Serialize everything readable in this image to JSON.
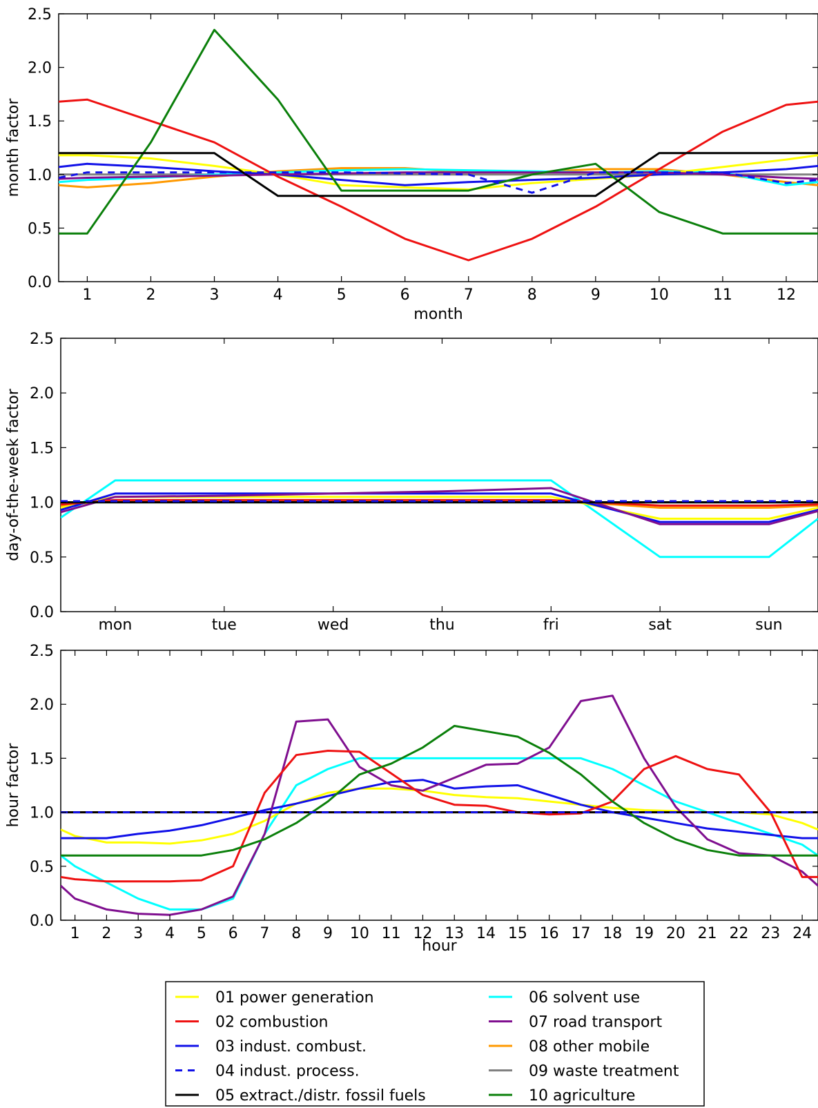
{
  "legend": {
    "position": "bottom-center",
    "entries": [
      {
        "label": "01 power generation",
        "color": "#ffff00",
        "dash": false
      },
      {
        "label": "02 combustion",
        "color": "#ee1111",
        "dash": false
      },
      {
        "label": "03 indust. combust.",
        "color": "#1010e8",
        "dash": false
      },
      {
        "label": "04 indust. process.",
        "color": "#1010e8",
        "dash": true
      },
      {
        "label": "05 extract./distr. fossil fuels",
        "color": "#000000",
        "dash": false
      },
      {
        "label": "06 solvent use",
        "color": "#00ffff",
        "dash": false
      },
      {
        "label": "07 road transport",
        "color": "#7f0f8f",
        "dash": false
      },
      {
        "label": "08 other mobile",
        "color": "#ff9900",
        "dash": false
      },
      {
        "label": "09 waste treatment",
        "color": "#808080",
        "dash": false
      },
      {
        "label": "10 agriculture",
        "color": "#0a7f0a",
        "dash": false
      }
    ]
  },
  "chart_data": [
    {
      "type": "line",
      "xlabel": "month",
      "ylabel": "month factor",
      "ylim": [
        0,
        2.5
      ],
      "xlim": [
        0.55,
        12.5
      ],
      "yticks": [
        "0.0",
        "0.5",
        "1.0",
        "1.5",
        "2.0",
        "2.5"
      ],
      "xticks": [
        "1",
        "2",
        "3",
        "4",
        "5",
        "6",
        "7",
        "8",
        "9",
        "10",
        "11",
        "12"
      ],
      "x": [
        0.55,
        1,
        2,
        3,
        4,
        5,
        6,
        7,
        8,
        9,
        10,
        11,
        12,
        12.5
      ],
      "grid": false,
      "series": [
        {
          "name": "01 power generation",
          "values": [
            1.18,
            1.18,
            1.15,
            1.08,
            1.0,
            0.9,
            0.88,
            0.86,
            0.92,
            0.96,
            1.0,
            1.07,
            1.14,
            1.18
          ]
        },
        {
          "name": "02 combustion",
          "values": [
            1.68,
            1.7,
            1.5,
            1.3,
            0.98,
            0.7,
            0.4,
            0.2,
            0.4,
            0.7,
            1.05,
            1.4,
            1.65,
            1.68
          ]
        },
        {
          "name": "03 indust. combust.",
          "values": [
            1.07,
            1.1,
            1.07,
            1.03,
            1.0,
            0.95,
            0.9,
            0.93,
            0.95,
            0.97,
            1.0,
            1.02,
            1.05,
            1.08
          ]
        },
        {
          "name": "04 indust. process.",
          "values": [
            0.97,
            1.02,
            1.02,
            1.02,
            1.02,
            1.02,
            1.01,
            1.0,
            0.83,
            1.02,
            1.02,
            1.02,
            0.92,
            0.95
          ]
        },
        {
          "name": "05 extract./distr. fossil fuels",
          "values": [
            1.2,
            1.2,
            1.2,
            1.2,
            0.8,
            0.8,
            0.8,
            0.8,
            0.8,
            0.8,
            1.2,
            1.2,
            1.2,
            1.2
          ]
        },
        {
          "name": "06 solvent use",
          "values": [
            0.93,
            0.95,
            0.97,
            1.0,
            1.02,
            1.04,
            1.05,
            1.04,
            1.03,
            1.02,
            1.03,
            1.02,
            0.9,
            0.93
          ]
        },
        {
          "name": "07 road transport",
          "values": [
            0.96,
            0.97,
            0.98,
            0.99,
            1.0,
            1.01,
            1.02,
            1.02,
            1.02,
            1.02,
            1.02,
            1.0,
            0.97,
            0.96
          ]
        },
        {
          "name": "08 other mobile",
          "values": [
            0.9,
            0.88,
            0.92,
            0.98,
            1.03,
            1.06,
            1.06,
            1.02,
            1.02,
            1.05,
            1.05,
            1.0,
            0.93,
            0.9
          ]
        },
        {
          "name": "09 waste treatment",
          "values": [
            1.0,
            1.0,
            1.0,
            1.0,
            1.0,
            1.0,
            1.0,
            1.0,
            1.0,
            1.0,
            1.0,
            1.0,
            1.0,
            1.0
          ]
        },
        {
          "name": "10 agriculture",
          "values": [
            0.45,
            0.45,
            1.3,
            2.35,
            1.7,
            0.85,
            0.85,
            0.85,
            1.0,
            1.1,
            0.65,
            0.45,
            0.45,
            0.45
          ]
        }
      ]
    },
    {
      "type": "line",
      "xlabel": "",
      "ylabel": "day-of-the-week factor",
      "ylim": [
        0,
        2.5
      ],
      "xlim": [
        0.5,
        7.45
      ],
      "yticks": [
        "0.0",
        "0.5",
        "1.0",
        "1.5",
        "2.0",
        "2.5"
      ],
      "xticks": [
        "mon",
        "tue",
        "wed",
        "thu",
        "fri",
        "sat",
        "sun"
      ],
      "x": [
        0.5,
        1,
        2,
        3,
        4,
        5,
        6,
        7,
        7.45
      ],
      "grid": false,
      "series": [
        {
          "name": "01 power generation",
          "values": [
            0.95,
            1.05,
            1.05,
            1.05,
            1.05,
            1.05,
            0.85,
            0.85,
            0.95
          ]
        },
        {
          "name": "02 combustion",
          "values": [
            0.98,
            1.02,
            1.02,
            1.02,
            1.02,
            1.02,
            0.97,
            0.97,
            0.98
          ]
        },
        {
          "name": "03 indust. combust.",
          "values": [
            0.93,
            1.08,
            1.08,
            1.08,
            1.08,
            1.08,
            0.82,
            0.82,
            0.93
          ]
        },
        {
          "name": "04 indust. process.",
          "values": [
            1.01,
            1.01,
            1.01,
            1.01,
            1.01,
            1.01,
            1.01,
            1.01,
            1.01
          ]
        },
        {
          "name": "05 extract./distr. fossil fuels",
          "values": [
            1.0,
            1.0,
            1.0,
            1.0,
            1.0,
            1.0,
            1.0,
            1.0,
            1.0
          ]
        },
        {
          "name": "06 solvent use",
          "values": [
            0.86,
            1.2,
            1.2,
            1.2,
            1.2,
            1.2,
            0.5,
            0.5,
            0.85
          ]
        },
        {
          "name": "07 road transport",
          "values": [
            0.91,
            1.05,
            1.06,
            1.08,
            1.1,
            1.13,
            0.8,
            0.8,
            0.92
          ]
        },
        {
          "name": "08 other mobile",
          "values": [
            0.97,
            1.02,
            1.02,
            1.02,
            1.02,
            1.02,
            0.95,
            0.95,
            0.97
          ]
        },
        {
          "name": "09 waste treatment",
          "values": [
            1.0,
            1.0,
            1.0,
            1.0,
            1.0,
            1.0,
            1.0,
            1.0,
            1.0
          ]
        },
        {
          "name": "10 agriculture",
          "values": [
            1.0,
            1.0,
            1.0,
            1.0,
            1.0,
            1.0,
            1.0,
            1.0,
            1.0
          ]
        }
      ]
    },
    {
      "type": "line",
      "xlabel": "hour",
      "ylabel": "hour factor",
      "ylim": [
        0,
        2.5
      ],
      "xlim": [
        0.55,
        24.5
      ],
      "yticks": [
        "0.0",
        "0.5",
        "1.0",
        "1.5",
        "2.0",
        "2.5"
      ],
      "xticks": [
        "1",
        "2",
        "3",
        "4",
        "5",
        "6",
        "7",
        "8",
        "9",
        "10",
        "11",
        "12",
        "13",
        "14",
        "15",
        "16",
        "17",
        "18",
        "19",
        "20",
        "21",
        "22",
        "23",
        "24"
      ],
      "x": [
        0.55,
        1,
        2,
        3,
        4,
        5,
        6,
        7,
        8,
        9,
        10,
        11,
        12,
        13,
        14,
        15,
        16,
        17,
        18,
        19,
        20,
        21,
        22,
        23,
        24,
        24.5
      ],
      "grid": false,
      "series": [
        {
          "name": "01 power generation",
          "values": [
            0.84,
            0.78,
            0.72,
            0.72,
            0.71,
            0.74,
            0.8,
            0.92,
            1.08,
            1.18,
            1.22,
            1.22,
            1.2,
            1.16,
            1.14,
            1.13,
            1.1,
            1.07,
            1.04,
            1.02,
            1.01,
            1.0,
            1.0,
            0.98,
            0.9,
            0.84
          ]
        },
        {
          "name": "02 combustion",
          "values": [
            0.4,
            0.38,
            0.36,
            0.36,
            0.36,
            0.37,
            0.5,
            1.18,
            1.53,
            1.57,
            1.56,
            1.36,
            1.16,
            1.07,
            1.06,
            1.0,
            0.98,
            0.99,
            1.1,
            1.4,
            1.52,
            1.4,
            1.35,
            1.0,
            0.4,
            0.4
          ]
        },
        {
          "name": "03 indust. combust.",
          "values": [
            0.76,
            0.76,
            0.76,
            0.8,
            0.83,
            0.88,
            0.95,
            1.02,
            1.08,
            1.15,
            1.22,
            1.28,
            1.3,
            1.22,
            1.24,
            1.25,
            1.16,
            1.07,
            1.0,
            0.95,
            0.9,
            0.85,
            0.82,
            0.79,
            0.76,
            0.76
          ]
        },
        {
          "name": "04 indust. process.",
          "values": [
            1.0,
            1.0,
            1.0,
            1.0,
            1.0,
            1.0,
            1.0,
            1.0,
            1.0,
            1.0,
            1.0,
            1.0,
            1.0,
            1.0,
            1.0,
            1.0,
            1.0,
            1.0,
            1.0,
            1.0,
            1.0,
            1.0,
            1.0,
            1.0,
            1.0,
            1.0
          ]
        },
        {
          "name": "05 extract./distr. fossil fuels",
          "values": [
            1.0,
            1.0,
            1.0,
            1.0,
            1.0,
            1.0,
            1.0,
            1.0,
            1.0,
            1.0,
            1.0,
            1.0,
            1.0,
            1.0,
            1.0,
            1.0,
            1.0,
            1.0,
            1.0,
            1.0,
            1.0,
            1.0,
            1.0,
            1.0,
            1.0,
            1.0
          ]
        },
        {
          "name": "06 solvent use",
          "values": [
            0.6,
            0.5,
            0.35,
            0.2,
            0.1,
            0.1,
            0.2,
            0.8,
            1.25,
            1.4,
            1.5,
            1.5,
            1.5,
            1.5,
            1.5,
            1.5,
            1.5,
            1.5,
            1.4,
            1.25,
            1.1,
            1.0,
            0.9,
            0.8,
            0.7,
            0.6
          ]
        },
        {
          "name": "07 road transport",
          "values": [
            0.32,
            0.2,
            0.1,
            0.06,
            0.05,
            0.1,
            0.22,
            0.8,
            1.84,
            1.86,
            1.42,
            1.25,
            1.2,
            1.32,
            1.44,
            1.45,
            1.6,
            2.03,
            2.08,
            1.5,
            1.05,
            0.75,
            0.62,
            0.6,
            0.45,
            0.32
          ]
        },
        {
          "name": "08 other mobile",
          "values": [
            1.0,
            1.0,
            1.0,
            1.0,
            1.0,
            1.0,
            1.0,
            1.0,
            1.0,
            1.0,
            1.0,
            1.0,
            1.0,
            1.0,
            1.0,
            1.0,
            1.0,
            1.0,
            1.0,
            1.0,
            1.0,
            1.0,
            1.0,
            1.0,
            1.0,
            1.0
          ]
        },
        {
          "name": "09 waste treatment",
          "values": [
            1.0,
            1.0,
            1.0,
            1.0,
            1.0,
            1.0,
            1.0,
            1.0,
            1.0,
            1.0,
            1.0,
            1.0,
            1.0,
            1.0,
            1.0,
            1.0,
            1.0,
            1.0,
            1.0,
            1.0,
            1.0,
            1.0,
            1.0,
            1.0,
            1.0,
            1.0
          ]
        },
        {
          "name": "10 agriculture",
          "values": [
            0.6,
            0.6,
            0.6,
            0.6,
            0.6,
            0.6,
            0.65,
            0.75,
            0.9,
            1.1,
            1.35,
            1.45,
            1.6,
            1.8,
            1.75,
            1.7,
            1.55,
            1.35,
            1.1,
            0.9,
            0.75,
            0.65,
            0.6,
            0.6,
            0.6,
            0.6
          ]
        }
      ]
    }
  ]
}
